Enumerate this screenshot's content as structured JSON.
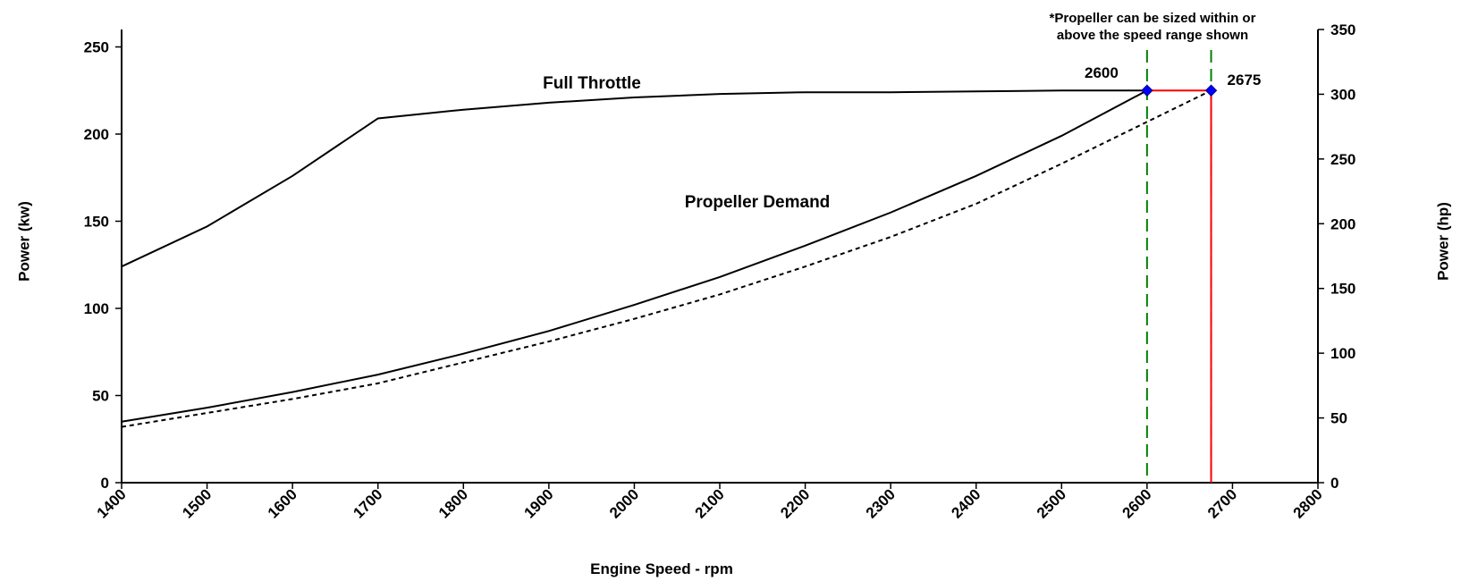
{
  "chart_data": {
    "type": "line",
    "xlabel": "Engine Speed - rpm",
    "ylabel": "Power (kw)",
    "y2label": "Power (hp)",
    "xlim": [
      1400,
      2800
    ],
    "xticks": [
      1400,
      1500,
      1600,
      1700,
      1800,
      1900,
      2000,
      2100,
      2200,
      2300,
      2400,
      2500,
      2600,
      2700,
      2800
    ],
    "ylim": [
      0,
      260
    ],
    "yticks": [
      0,
      50,
      100,
      150,
      200,
      250
    ],
    "y2lim": [
      0,
      350
    ],
    "y2ticks": [
      0,
      50,
      100,
      150,
      200,
      250,
      300,
      350
    ],
    "series": [
      {
        "color": "#000000",
        "dash": "solid",
        "x": [
          1400,
          1500,
          1600,
          1700,
          1800,
          1900,
          2000,
          2100,
          2200,
          2300,
          2400,
          2500,
          2600
        ],
        "values": [
          124,
          147,
          176,
          209,
          214,
          218,
          221,
          223,
          224,
          224,
          224.5,
          225,
          225
        ]
      },
      {
        "color": "#000000",
        "dash": "solid",
        "x": [
          1400,
          1500,
          1600,
          1700,
          1800,
          1900,
          2000,
          2100,
          2200,
          2300,
          2400,
          2500,
          2600
        ],
        "values": [
          35,
          43,
          52,
          62,
          74,
          87,
          102,
          118,
          136,
          155,
          176,
          199,
          225
        ]
      },
      {
        "color": "#000000",
        "dash": "dashed",
        "x": [
          1400,
          1500,
          1600,
          1700,
          1800,
          1900,
          2000,
          2100,
          2200,
          2300,
          2400,
          2500,
          2600,
          2675
        ],
        "values": [
          32,
          40,
          48,
          57,
          69,
          81,
          94,
          108,
          124,
          141,
          160,
          183,
          207,
          225
        ]
      },
      {
        "color": "#ff0000",
        "dash": "solid",
        "x": [
          2600,
          2675
        ],
        "values": [
          225,
          225
        ]
      },
      {
        "color": "#ff0000",
        "dash": "solid",
        "x": [
          2675,
          2675
        ],
        "values": [
          0,
          225
        ]
      }
    ],
    "markers": {
      "color": "#0000ff",
      "x": [
        2600,
        2675
      ],
      "values": [
        225,
        225
      ]
    },
    "vlines": {
      "color": "#008000",
      "x": [
        2600,
        2675
      ]
    },
    "annotations": [
      "Full Throttle",
      "Propeller Demand"
    ],
    "note": [
      "*Propeller can be sized within or",
      "above the speed range shown"
    ]
  }
}
